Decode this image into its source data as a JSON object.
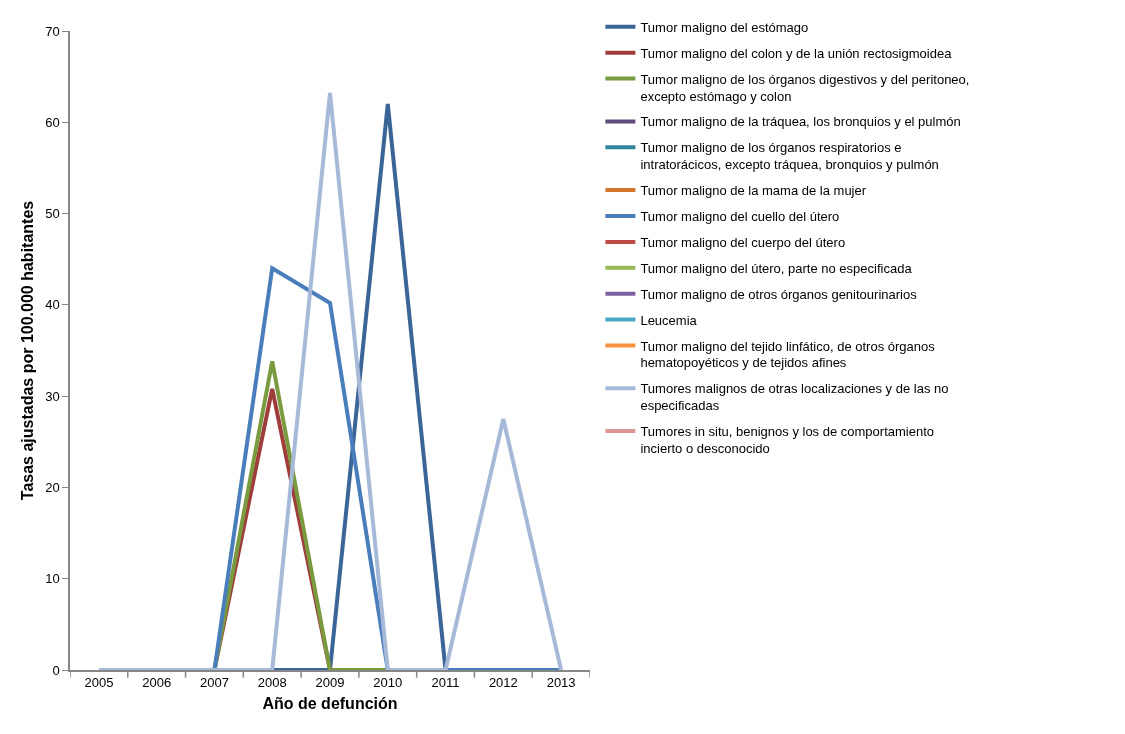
{
  "chart_data": {
    "type": "line",
    "xlabel": "Año de defunción",
    "ylabel": "Tasas ajustadas por 100.000 habitantes",
    "categories": [
      "2005",
      "2006",
      "2007",
      "2008",
      "2009",
      "2010",
      "2011",
      "2012",
      "2013"
    ],
    "ylim": [
      0,
      70
    ],
    "yticks": [
      0,
      10,
      20,
      30,
      40,
      50,
      60,
      70
    ],
    "legend": "right",
    "marker": "none",
    "line_style": "solid",
    "series": [
      {
        "name": "Tumor maligno del estómago",
        "color": "#3b6597",
        "values": [
          null,
          null,
          null,
          0,
          0,
          62,
          0,
          null,
          null
        ]
      },
      {
        "name": "Tumor maligno del colon y de la unión rectosigmoidea",
        "color": "#9e3d3a",
        "values": [
          null,
          null,
          0,
          30.8,
          0,
          null,
          null,
          null,
          null
        ]
      },
      {
        "name": "Tumor maligno de los órganos digestivos y del peritoneo, excepto estómago y colon",
        "color": "#7a9a40",
        "values": [
          null,
          null,
          0,
          33.8,
          0,
          0,
          null,
          null,
          null
        ]
      },
      {
        "name": "Tumor maligno de la tráquea, los bronquios y el pulmón",
        "color": "#604a7b",
        "values": [
          null,
          null,
          null,
          null,
          null,
          null,
          null,
          null,
          null
        ]
      },
      {
        "name": "Tumor maligno de los órganos respiratorios e intratorácicos, excepto tráquea, bronquios y pulmón",
        "color": "#31859c",
        "values": [
          null,
          null,
          null,
          null,
          null,
          null,
          null,
          null,
          null
        ]
      },
      {
        "name": "Tumor maligno de la mama de la mujer",
        "color": "#d2772d",
        "values": [
          null,
          null,
          null,
          null,
          null,
          null,
          null,
          null,
          null
        ]
      },
      {
        "name": "Tumor maligno del cuello del útero",
        "color": "#4a7ebb",
        "values": [
          null,
          null,
          0,
          44,
          40.2,
          0,
          0,
          0,
          0
        ]
      },
      {
        "name": "Tumor maligno del cuerpo del útero",
        "color": "#be4b48",
        "values": [
          null,
          null,
          null,
          null,
          null,
          null,
          null,
          null,
          null
        ]
      },
      {
        "name": "Tumor maligno del útero, parte no especificada",
        "color": "#98b954",
        "values": [
          null,
          null,
          null,
          null,
          null,
          null,
          null,
          null,
          null
        ]
      },
      {
        "name": "Tumor maligno de otros órganos genitourinarios",
        "color": "#7d60a0",
        "values": [
          null,
          null,
          null,
          null,
          null,
          null,
          null,
          null,
          null
        ]
      },
      {
        "name": "Leucemia",
        "color": "#46aac5",
        "values": [
          null,
          null,
          null,
          null,
          null,
          null,
          null,
          null,
          null
        ]
      },
      {
        "name": "Tumor maligno del tejido linfático, de otros órganos hematopoyéticos y de tejidos afines",
        "color": "#f69240",
        "values": [
          null,
          null,
          null,
          null,
          null,
          null,
          null,
          null,
          null
        ]
      },
      {
        "name": "Tumores malignos de otras localizaciones y de las no especificadas",
        "color": "#a7b9d9",
        "values": [
          0,
          0,
          0,
          0,
          63.2,
          0,
          0,
          27.5,
          0
        ]
      },
      {
        "name": "Tumores in situ, benignos y los de comportamiento incierto o desconocido",
        "color": "#d99694",
        "values": [
          null,
          null,
          null,
          null,
          null,
          null,
          null,
          null,
          null
        ]
      }
    ]
  }
}
